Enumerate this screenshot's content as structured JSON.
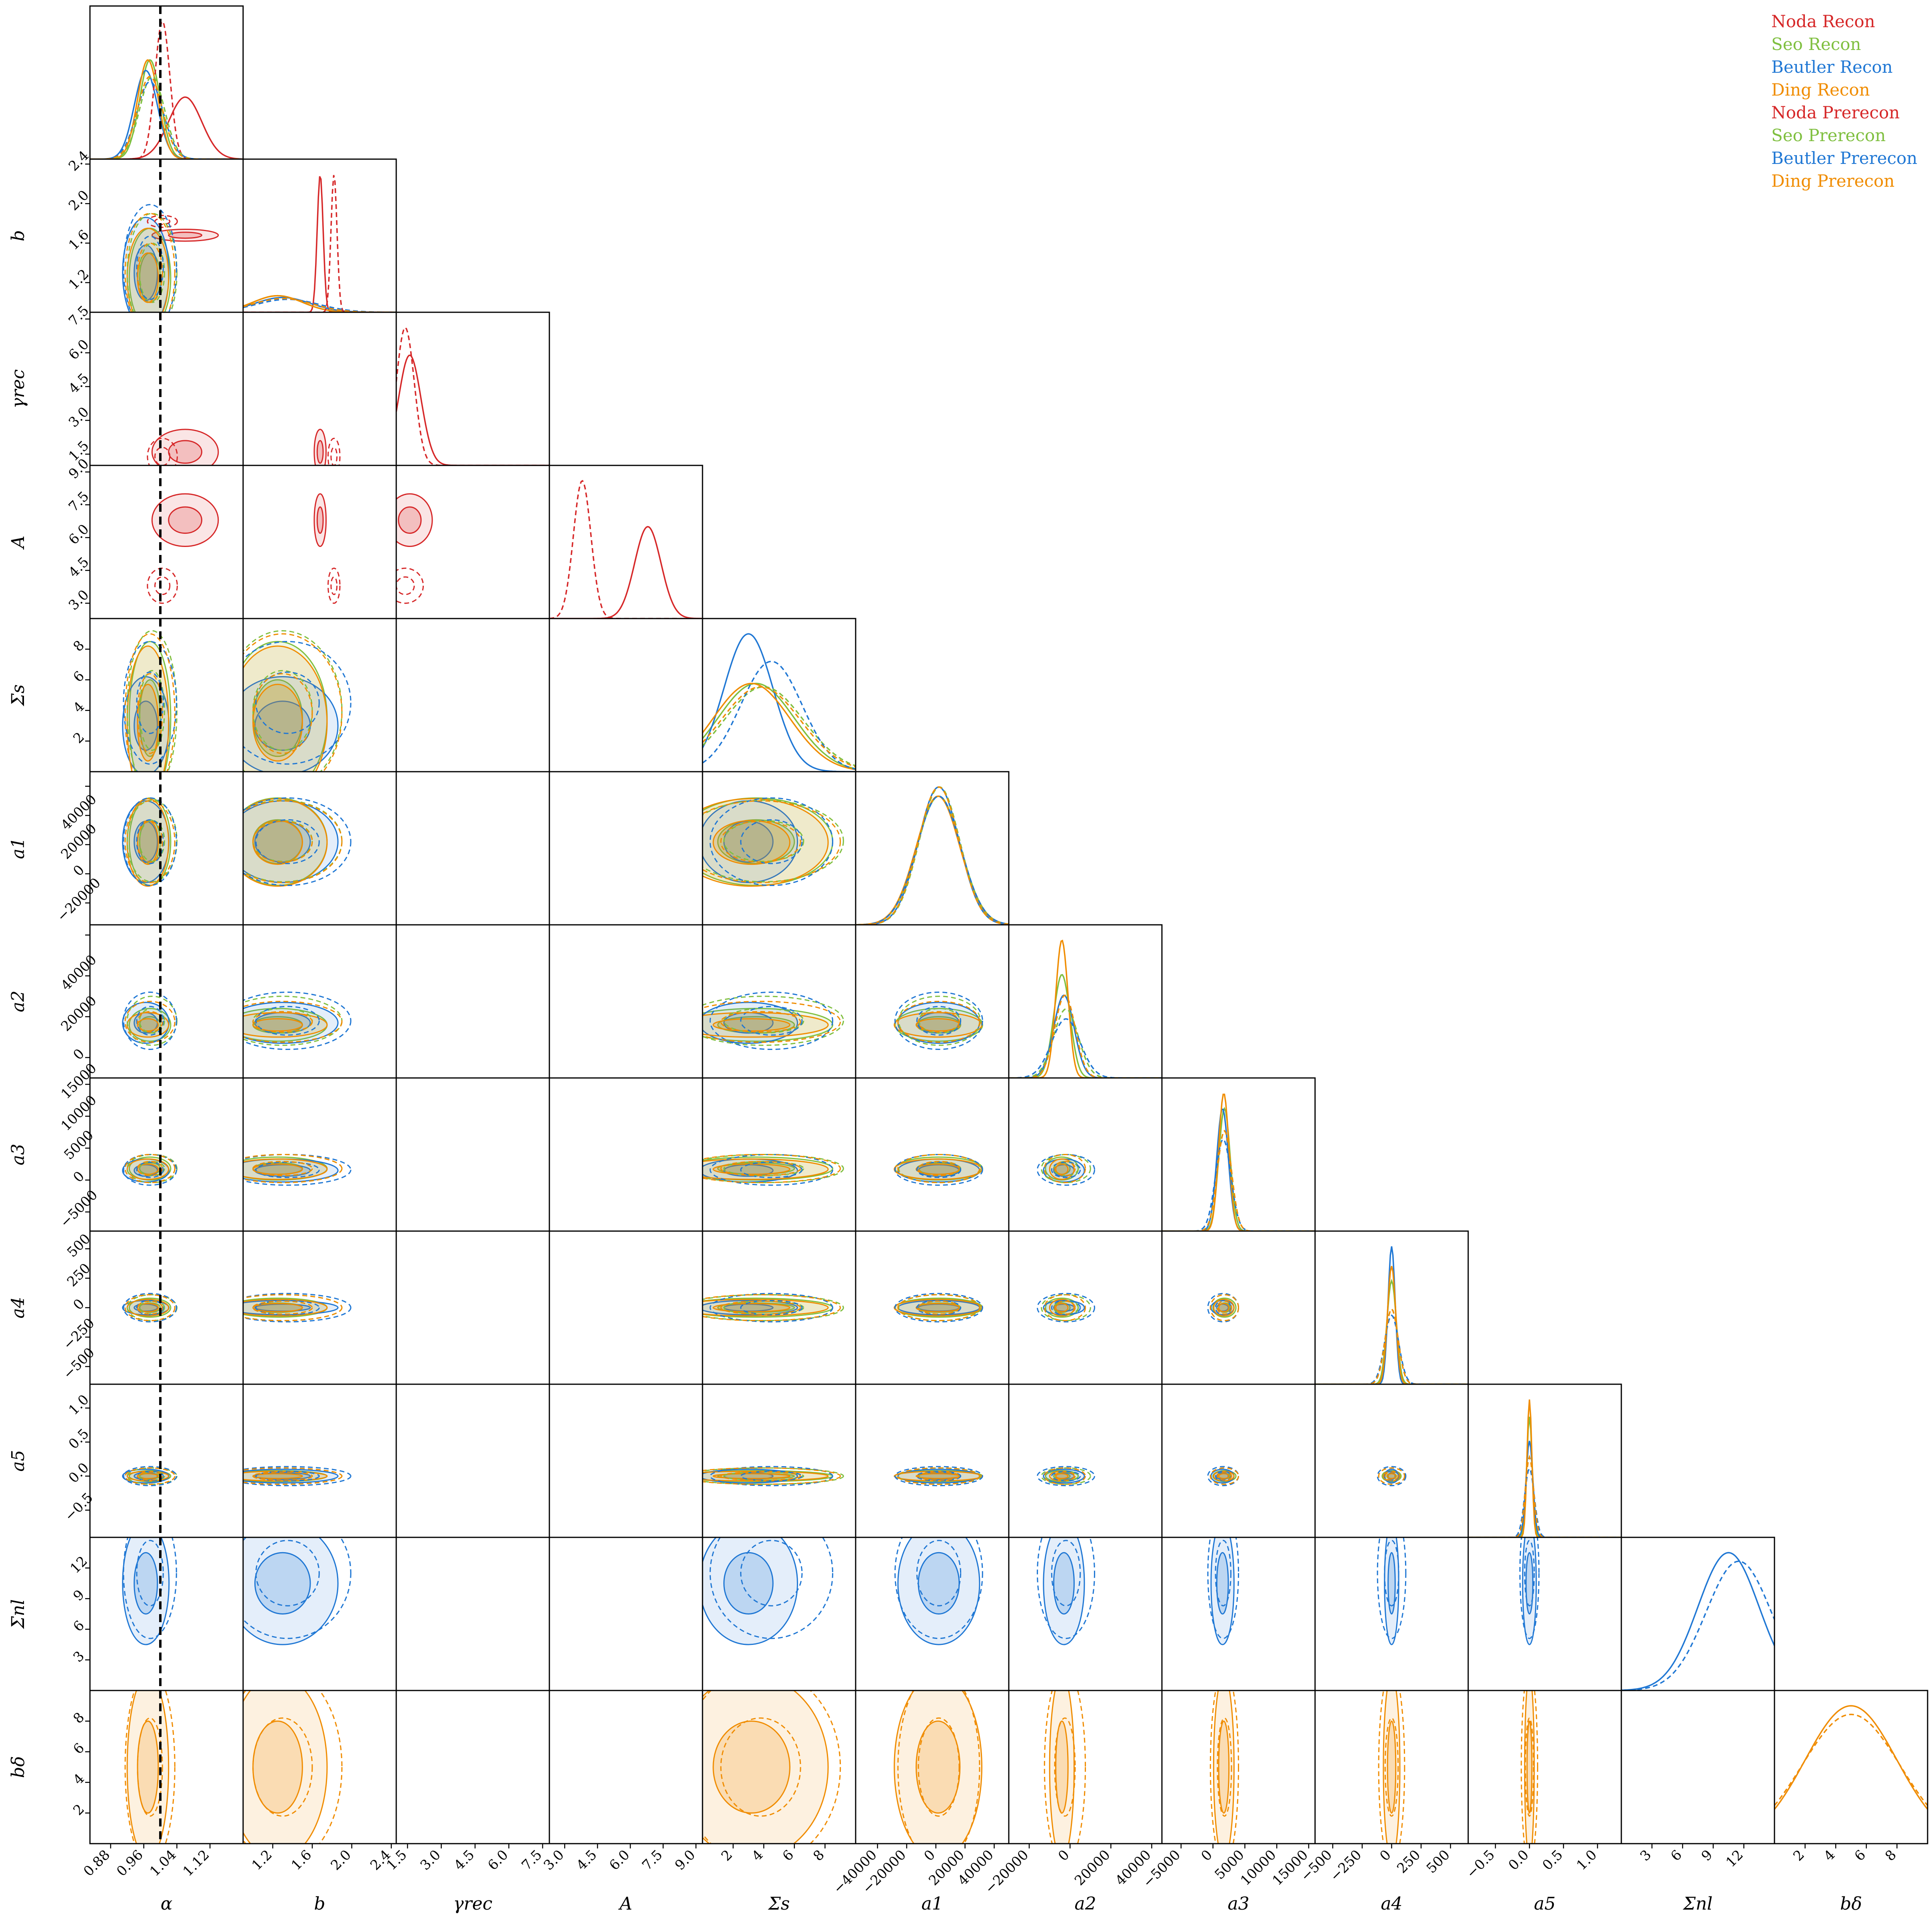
{
  "chart_data": {
    "type": "corner",
    "parameters": [
      {
        "key": "alpha",
        "label": "α",
        "ticks": [
          0.88,
          0.96,
          1.04,
          1.12
        ],
        "range": [
          0.83,
          1.2
        ]
      },
      {
        "key": "b",
        "label": "b",
        "ticks": [
          1.2,
          1.6,
          2.0,
          2.4
        ],
        "range": [
          0.9,
          2.45
        ]
      },
      {
        "key": "gamma_rec",
        "label": "γrec",
        "ticks": [
          1.5,
          3.0,
          4.5,
          6.0,
          7.5
        ],
        "range": [
          1.0,
          7.8
        ]
      },
      {
        "key": "A",
        "label": "A",
        "ticks": [
          3.0,
          4.5,
          6.0,
          7.5,
          9.0
        ],
        "range": [
          2.3,
          9.3
        ]
      },
      {
        "key": "Sigma_s",
        "label": "Σs",
        "ticks": [
          2,
          4,
          6,
          8
        ],
        "range": [
          0,
          10
        ]
      },
      {
        "key": "a1",
        "label": "a1",
        "ticks": [
          -40000,
          -20000,
          0,
          20000,
          40000
        ],
        "range": [
          -55000,
          50000
        ]
      },
      {
        "key": "a2",
        "label": "a2",
        "ticks": [
          -40000,
          -20000,
          0,
          20000,
          40000
        ],
        "range": [
          -30000,
          45000
        ]
      },
      {
        "key": "a3",
        "label": "a3",
        "ticks": [
          -5000,
          0,
          5000,
          10000,
          15000
        ],
        "range": [
          -8000,
          16000
        ]
      },
      {
        "key": "a4",
        "label": "a4",
        "ticks": [
          -500,
          -250,
          0,
          250,
          500
        ],
        "range": [
          -650,
          650
        ]
      },
      {
        "key": "a5",
        "label": "a5",
        "ticks": [
          -0.5,
          0.0,
          0.5,
          1.0
        ],
        "range": [
          -0.9,
          1.35
        ]
      },
      {
        "key": "Sigma_nl",
        "label": "Σnl",
        "ticks": [
          3,
          6,
          9,
          12
        ],
        "range": [
          0,
          15
        ]
      },
      {
        "key": "b_delta",
        "label": "bδ",
        "ticks": [
          2,
          4,
          6,
          8
        ],
        "range": [
          0,
          10
        ]
      }
    ],
    "y_tick_labels": {
      "b": [
        "1.2",
        "1.6",
        "2.0",
        "2.4"
      ],
      "gamma_rec": [
        "1.5",
        "3.0",
        "4.5",
        "6.0",
        "7.5"
      ],
      "A": [
        "3.0",
        "4.5",
        "6.0",
        "7.5",
        "9.0"
      ],
      "Sigma_s": [
        "2",
        "4",
        "6",
        "8"
      ],
      "a1": [
        "−20000",
        "0",
        "20000",
        "40000"
      ],
      "a2": [
        "−20000",
        "0",
        "20000",
        "40000"
      ],
      "a3": [
        "−5000",
        "0",
        "5000",
        "10000",
        "15000"
      ],
      "a4": [
        "−500",
        "−250",
        "0",
        "250",
        "500"
      ],
      "a5": [
        "−0.5",
        "0.0",
        "0.5",
        "1.0"
      ],
      "Sigma_nl": [
        "3",
        "6",
        "9",
        "12"
      ],
      "b_delta": [
        "2",
        "4",
        "6",
        "8"
      ]
    },
    "x_tick_labels": {
      "alpha": [
        "0.88",
        "0.96",
        "1.04",
        "1.12"
      ],
      "b": [
        "1.2",
        "1.6",
        "2.0",
        "2.4"
      ],
      "gamma_rec": [
        "1.5",
        "3.0",
        "4.5",
        "6.0",
        "7.5"
      ],
      "A": [
        "3.0",
        "4.5",
        "6.0",
        "7.5",
        "9.0"
      ],
      "Sigma_s": [
        "2",
        "4",
        "6",
        "8"
      ],
      "a1": [
        "−40000",
        "−20000",
        "0",
        "20000",
        "40000"
      ],
      "a2": [
        "−40000",
        "−20000",
        "0",
        "20000",
        "40000"
      ],
      "a3": [
        "−5000",
        "0",
        "5000",
        "10000",
        "15000"
      ],
      "a4": [
        "−500",
        "−250",
        "0",
        "250",
        "500"
      ],
      "a5": [
        "−0.5",
        "0.0",
        "0.5",
        "1.0"
      ],
      "Sigma_nl": [
        "3",
        "6",
        "9",
        "12"
      ],
      "b_delta": [
        "2",
        "4",
        "6",
        "8"
      ]
    },
    "truth": {
      "parameter": "alpha",
      "value": 1.0,
      "style": "dashed",
      "color": "#000000"
    },
    "series": [
      {
        "name": "Noda Recon",
        "color": "#d62728",
        "dash": false,
        "params": [
          "alpha",
          "b",
          "gamma_rec",
          "A"
        ],
        "mean": {
          "alpha": 1.06,
          "b": 1.68,
          "gamma_rec": 1.6,
          "A": 6.8
        },
        "sd": {
          "alpha": 0.04,
          "b": 0.03,
          "gamma_rec": 0.5,
          "A": 0.6
        }
      },
      {
        "name": "Seo Recon",
        "color": "#7fbf3f",
        "dash": false,
        "params": [
          "alpha",
          "b",
          "Sigma_s",
          "a1",
          "a2",
          "a3",
          "a4",
          "a5"
        ],
        "mean": {
          "alpha": 0.975,
          "b": 1.25,
          "Sigma_s": 3.5,
          "a1": 2000,
          "a2": -4000,
          "a3": 1800,
          "a4": 0,
          "a5": 0.0
        },
        "sd": {
          "alpha": 0.025,
          "b": 0.25,
          "Sigma_s": 2.5,
          "a1": 15000,
          "a2": 4000,
          "a3": 900,
          "a4": 40,
          "a5": 0.04
        }
      },
      {
        "name": "Beutler Recon",
        "color": "#1f77d4",
        "dash": false,
        "params": [
          "alpha",
          "b",
          "Sigma_s",
          "a1",
          "a2",
          "a3",
          "a4",
          "a5",
          "Sigma_nl"
        ],
        "mean": {
          "alpha": 0.965,
          "b": 1.3,
          "Sigma_s": 3.0,
          "a1": 2000,
          "a2": -3000,
          "a3": 1500,
          "a4": 0,
          "a5": 0.0,
          "Sigma_nl": 10.5
        },
        "sd": {
          "alpha": 0.028,
          "b": 0.28,
          "Sigma_s": 1.6,
          "a1": 14000,
          "a2": 5000,
          "a3": 900,
          "a4": 30,
          "a5": 0.05,
          "Sigma_nl": 3.0
        }
      },
      {
        "name": "Ding Recon",
        "color": "#f08c00",
        "dash": false,
        "params": [
          "alpha",
          "b",
          "Sigma_s",
          "a1",
          "a2",
          "a3",
          "a4",
          "a5",
          "b_delta"
        ],
        "mean": {
          "alpha": 0.97,
          "b": 1.25,
          "Sigma_s": 3.2,
          "a1": 1500,
          "a2": -4000,
          "a3": 1700,
          "a4": 0,
          "a5": 0.0,
          "b_delta": 5.0
        },
        "sd": {
          "alpha": 0.025,
          "b": 0.25,
          "Sigma_s": 2.5,
          "a1": 15000,
          "a2": 3000,
          "a3": 800,
          "a4": 35,
          "a5": 0.035,
          "b_delta": 3.0
        }
      },
      {
        "name": "Noda Prerecon",
        "color": "#d62728",
        "dash": true,
        "params": [
          "alpha",
          "b",
          "gamma_rec",
          "A"
        ],
        "mean": {
          "alpha": 1.005,
          "b": 1.82,
          "gamma_rec": 1.4,
          "A": 3.8
        },
        "sd": {
          "alpha": 0.018,
          "b": 0.03,
          "gamma_rec": 0.4,
          "A": 0.4
        }
      },
      {
        "name": "Seo Prerecon",
        "color": "#7fbf3f",
        "dash": true,
        "params": [
          "alpha",
          "b",
          "Sigma_s",
          "a1",
          "a2",
          "a3",
          "a4",
          "a5"
        ],
        "mean": {
          "alpha": 0.98,
          "b": 1.3,
          "Sigma_s": 4.0,
          "a1": 2500,
          "a2": -2000,
          "a3": 1800,
          "a4": 0,
          "a5": 0.0
        },
        "sd": {
          "alpha": 0.03,
          "b": 0.3,
          "Sigma_s": 2.6,
          "a1": 14000,
          "a2": 6000,
          "a3": 1100,
          "a4": 55,
          "a5": 0.06
        }
      },
      {
        "name": "Beutler Prerecon",
        "color": "#1f77d4",
        "dash": true,
        "params": [
          "alpha",
          "b",
          "Sigma_s",
          "a1",
          "a2",
          "a3",
          "a4",
          "a5",
          "Sigma_nl"
        ],
        "mean": {
          "alpha": 0.975,
          "b": 1.35,
          "Sigma_s": 4.5,
          "a1": 2000,
          "a2": -2000,
          "a3": 1600,
          "a4": 0,
          "a5": 0.0,
          "Sigma_nl": 11.5
        },
        "sd": {
          "alpha": 0.032,
          "b": 0.32,
          "Sigma_s": 2.0,
          "a1": 15000,
          "a2": 7000,
          "a3": 1200,
          "a4": 60,
          "a5": 0.07,
          "Sigma_nl": 3.2
        }
      },
      {
        "name": "Ding Prerecon",
        "color": "#f08c00",
        "dash": true,
        "params": [
          "alpha",
          "b",
          "Sigma_s",
          "a1",
          "a2",
          "a3",
          "a4",
          "a5",
          "b_delta"
        ],
        "mean": {
          "alpha": 0.975,
          "b": 1.3,
          "Sigma_s": 3.8,
          "a1": 2000,
          "a2": -2500,
          "a3": 1800,
          "a4": 0,
          "a5": 0.0,
          "b_delta": 5.0
        },
        "sd": {
          "alpha": 0.03,
          "b": 0.3,
          "Sigma_s": 2.6,
          "a1": 14000,
          "a2": 5000,
          "a3": 1100,
          "a4": 55,
          "a5": 0.06,
          "b_delta": 3.2
        }
      }
    ],
    "legend": {
      "placement": "top-right",
      "entries": [
        "Noda Recon",
        "Seo Recon",
        "Beutler Recon",
        "Ding Recon",
        "Noda Prerecon",
        "Seo Prerecon",
        "Beutler Prerecon",
        "Ding Prerecon"
      ]
    }
  }
}
